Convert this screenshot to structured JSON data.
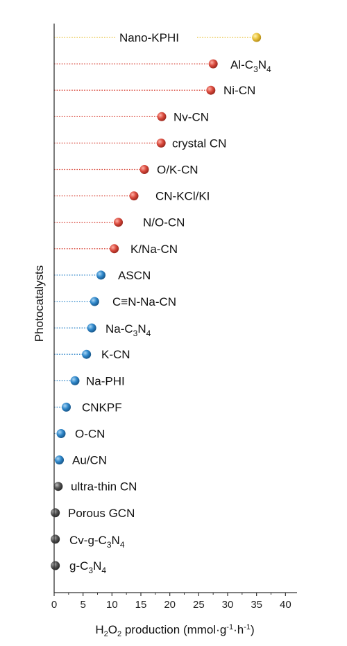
{
  "chart_data": {
    "type": "scatter",
    "orientation": "horizontal-lollipop",
    "xlabel": "H2O2 production (mmol·g-1·h-1)",
    "ylabel": "Photocatalysts",
    "xlim": [
      0,
      42
    ],
    "xticks": [
      0,
      5,
      10,
      15,
      20,
      25,
      30,
      35,
      40
    ],
    "grid": false,
    "colors": {
      "yellow": "#e8c13a",
      "red": "#d9493c",
      "blue": "#2e86c9",
      "gray": "#555555"
    },
    "points": [
      {
        "name": "Nano-KPHI",
        "value": 35.0,
        "group": "yellow"
      },
      {
        "name": "Al-C3N4",
        "value": 27.5,
        "group": "red"
      },
      {
        "name": "Ni-CN",
        "value": 27.1,
        "group": "red"
      },
      {
        "name": "Nv-CN",
        "value": 18.6,
        "group": "red"
      },
      {
        "name": "crystal CN",
        "value": 18.5,
        "group": "red"
      },
      {
        "name": "O/K-CN",
        "value": 15.6,
        "group": "red"
      },
      {
        "name": "CN-KCl/KI",
        "value": 13.8,
        "group": "red"
      },
      {
        "name": "N/O-CN",
        "value": 11.1,
        "group": "red"
      },
      {
        "name": "K/Na-CN",
        "value": 10.4,
        "group": "red"
      },
      {
        "name": "ASCN",
        "value": 8.1,
        "group": "blue"
      },
      {
        "name": "C≡N-Na-CN",
        "value": 7.0,
        "group": "blue"
      },
      {
        "name": "Na-C3N4",
        "value": 6.5,
        "group": "blue"
      },
      {
        "name": "K-CN",
        "value": 5.6,
        "group": "blue"
      },
      {
        "name": "Na-PHI",
        "value": 3.6,
        "group": "blue"
      },
      {
        "name": "CNKPF",
        "value": 2.1,
        "group": "blue"
      },
      {
        "name": "O-CN",
        "value": 1.2,
        "group": "blue"
      },
      {
        "name": "Au/CN",
        "value": 0.9,
        "group": "blue"
      },
      {
        "name": "ultra-thin CN",
        "value": 0.7,
        "group": "gray"
      },
      {
        "name": "Porous GCN",
        "value": 0.2,
        "group": "gray"
      },
      {
        "name": "Cv-g-C3N4",
        "value": 0.2,
        "group": "gray"
      },
      {
        "name": "g-C3N4",
        "value": 0.2,
        "group": "gray"
      }
    ]
  }
}
